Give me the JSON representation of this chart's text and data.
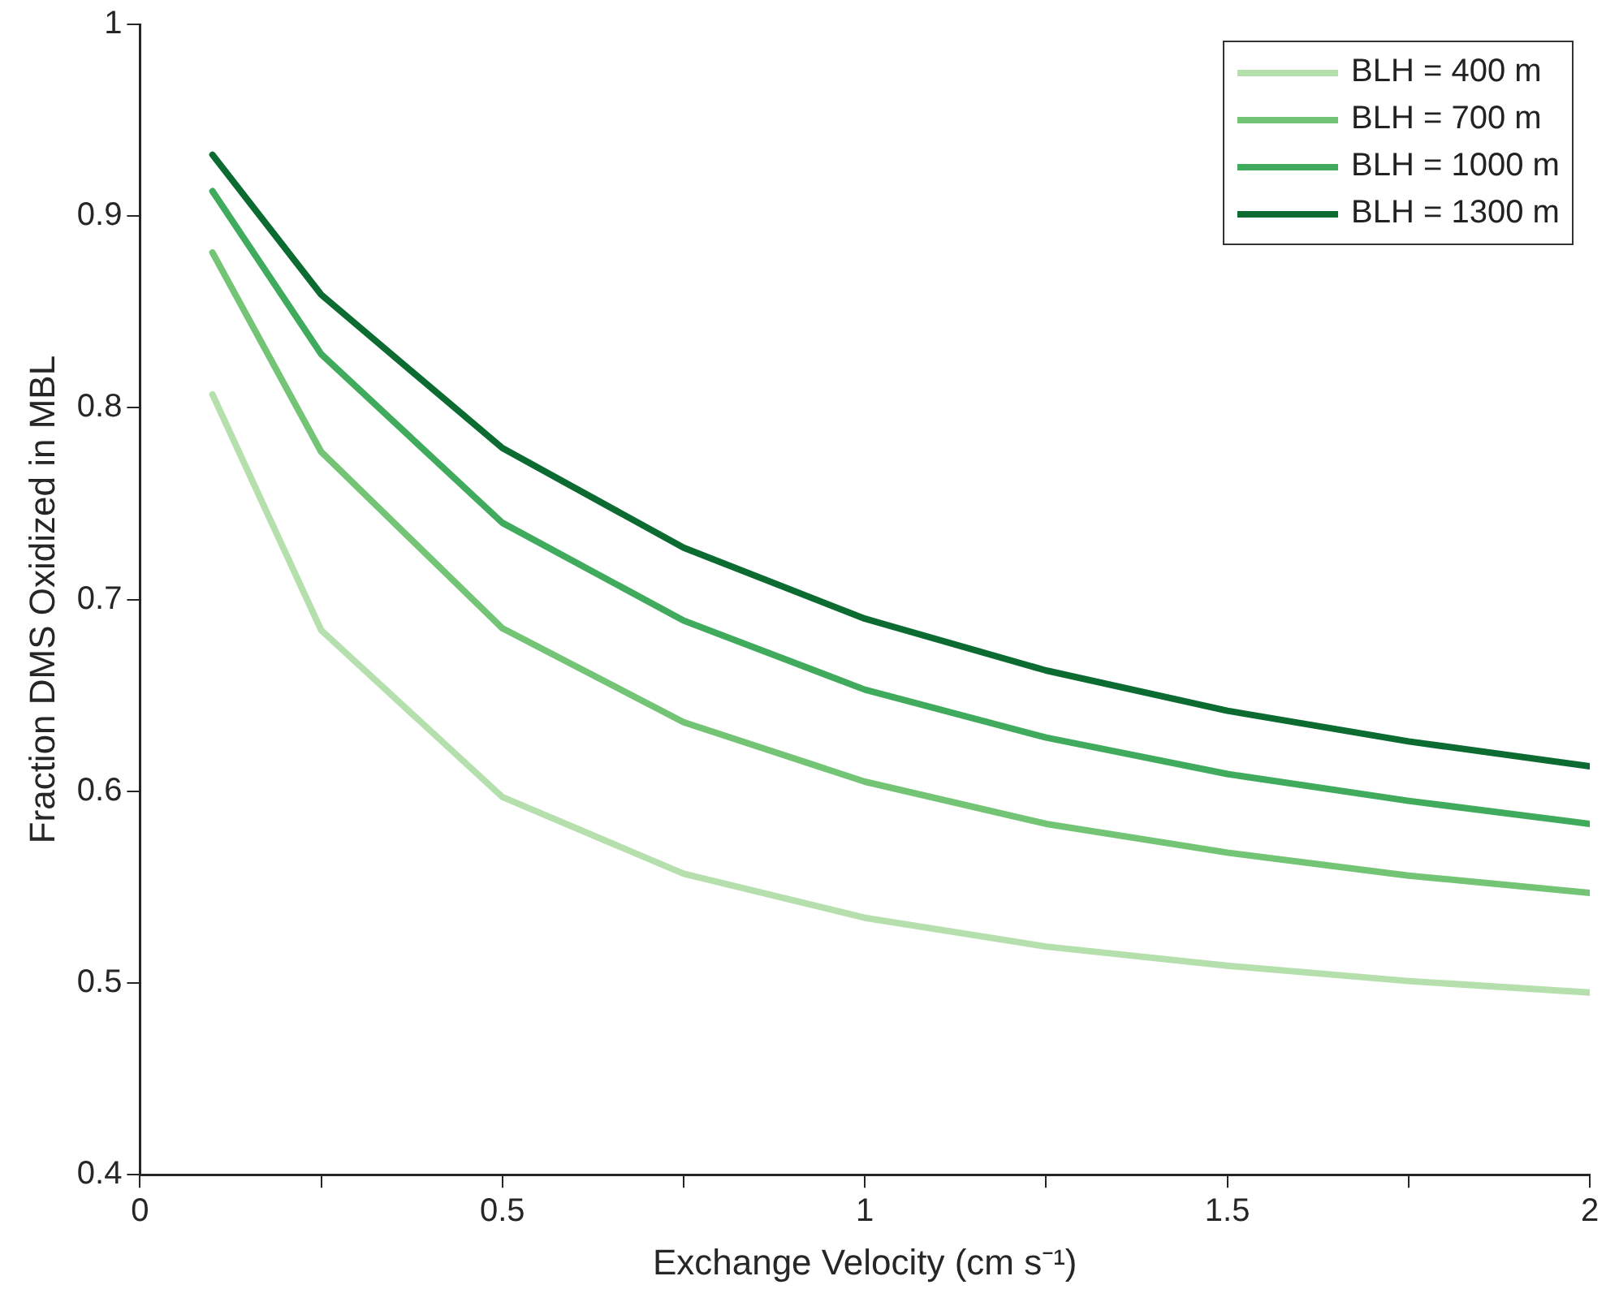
{
  "chart_data": {
    "type": "line",
    "xlabel": "Exchange Velocity (cm s⁻¹)",
    "ylabel": "Fraction DMS Oxidized in MBL",
    "x": [
      0.1,
      0.25,
      0.5,
      0.75,
      1,
      1.25,
      1.5,
      1.75,
      2
    ],
    "series": [
      {
        "name": "BLH = 400 m",
        "color": "#b5e0ad",
        "values": [
          0.807,
          0.684,
          0.597,
          0.557,
          0.534,
          0.519,
          0.509,
          0.501,
          0.495
        ]
      },
      {
        "name": "BLH = 700 m",
        "color": "#74c476",
        "values": [
          0.881,
          0.777,
          0.685,
          0.636,
          0.605,
          0.583,
          0.568,
          0.556,
          0.547
        ]
      },
      {
        "name": "BLH = 1000 m",
        "color": "#41ab5d",
        "values": [
          0.913,
          0.828,
          0.74,
          0.689,
          0.653,
          0.628,
          0.609,
          0.595,
          0.583
        ]
      },
      {
        "name": "BLH = 1300 m",
        "color": "#0b6b30",
        "values": [
          0.932,
          0.859,
          0.779,
          0.727,
          0.69,
          0.663,
          0.642,
          0.626,
          0.613
        ]
      }
    ],
    "xlim": [
      0,
      2
    ],
    "xticks": [
      0,
      {
        "value": 0.25,
        "label": null
      },
      0.5,
      {
        "value": 0.75,
        "label": null
      },
      1,
      {
        "value": 1.25,
        "label": null
      },
      1.5,
      {
        "value": 1.75,
        "label": null
      },
      2
    ],
    "ylim": [
      0.4,
      1
    ],
    "yticks": [
      0.4,
      0.5,
      0.6,
      0.7,
      0.8,
      0.9,
      1
    ],
    "grid": false,
    "legend": "top right",
    "marker": "none",
    "line_style": "solid"
  }
}
